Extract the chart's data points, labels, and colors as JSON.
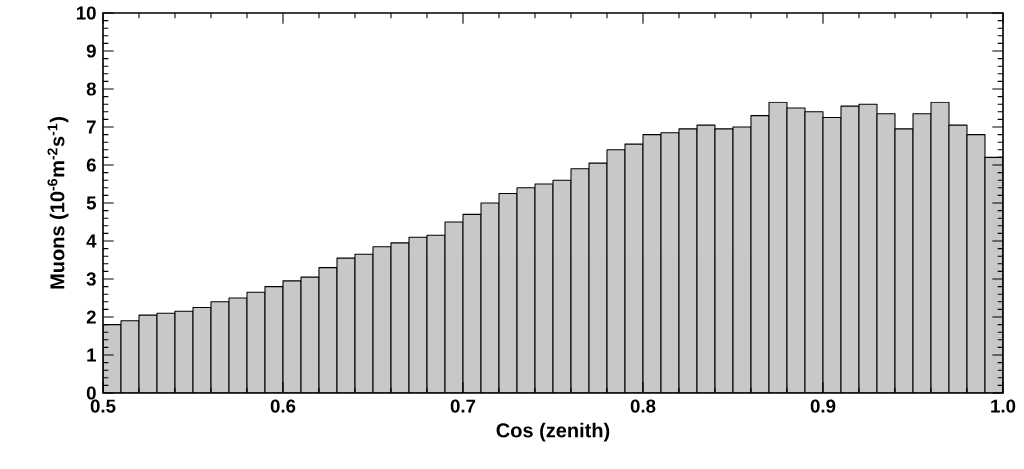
{
  "chart_data": {
    "type": "histogram",
    "xlabel": "Cos  (zenith)",
    "ylabel": "Muons (10$^{-6}$m$^{-2}$s$^{-1}$)",
    "bins": [
      0.5,
      0.51,
      0.52,
      0.53,
      0.54,
      0.55,
      0.56,
      0.57,
      0.58,
      0.59,
      0.6,
      0.61,
      0.62,
      0.63,
      0.64,
      0.65,
      0.66,
      0.67,
      0.68,
      0.69,
      0.7,
      0.71,
      0.72,
      0.73,
      0.74,
      0.75,
      0.76,
      0.77,
      0.78,
      0.79,
      0.8,
      0.81,
      0.82,
      0.83,
      0.84,
      0.85,
      0.86,
      0.87,
      0.88,
      0.89,
      0.9,
      0.91,
      0.92,
      0.93,
      0.94,
      0.95,
      0.96,
      0.97,
      0.98,
      0.99,
      1.0
    ],
    "values": [
      1.8,
      1.9,
      2.05,
      2.1,
      2.15,
      2.25,
      2.4,
      2.5,
      2.65,
      2.8,
      2.95,
      3.05,
      3.3,
      3.55,
      3.65,
      3.85,
      3.95,
      4.1,
      4.15,
      4.5,
      4.7,
      5.0,
      5.25,
      5.4,
      5.5,
      5.6,
      5.9,
      6.05,
      6.4,
      6.55,
      6.8,
      6.85,
      6.95,
      7.05,
      6.95,
      7.0,
      7.3,
      7.65,
      7.5,
      7.4,
      7.25,
      7.55,
      7.6,
      7.35,
      6.95,
      7.35,
      7.65,
      7.05,
      6.8,
      6.2
    ],
    "color": "#c8c8c8",
    "xlim": [
      0.5,
      1.0
    ],
    "ylim": [
      0,
      10
    ],
    "xticks": [
      {
        "value": 0.5,
        "label": "0.5"
      },
      {
        "value": 0.6,
        "label": "0.6"
      },
      {
        "value": 0.7,
        "label": "0.7"
      },
      {
        "value": 0.8,
        "label": "0.8"
      },
      {
        "value": 0.9,
        "label": "0.9"
      },
      {
        "value": 1.0,
        "label": "1.0"
      }
    ],
    "yticks": [
      0,
      1,
      2,
      3,
      4,
      5,
      6,
      7,
      8,
      9,
      10
    ]
  }
}
